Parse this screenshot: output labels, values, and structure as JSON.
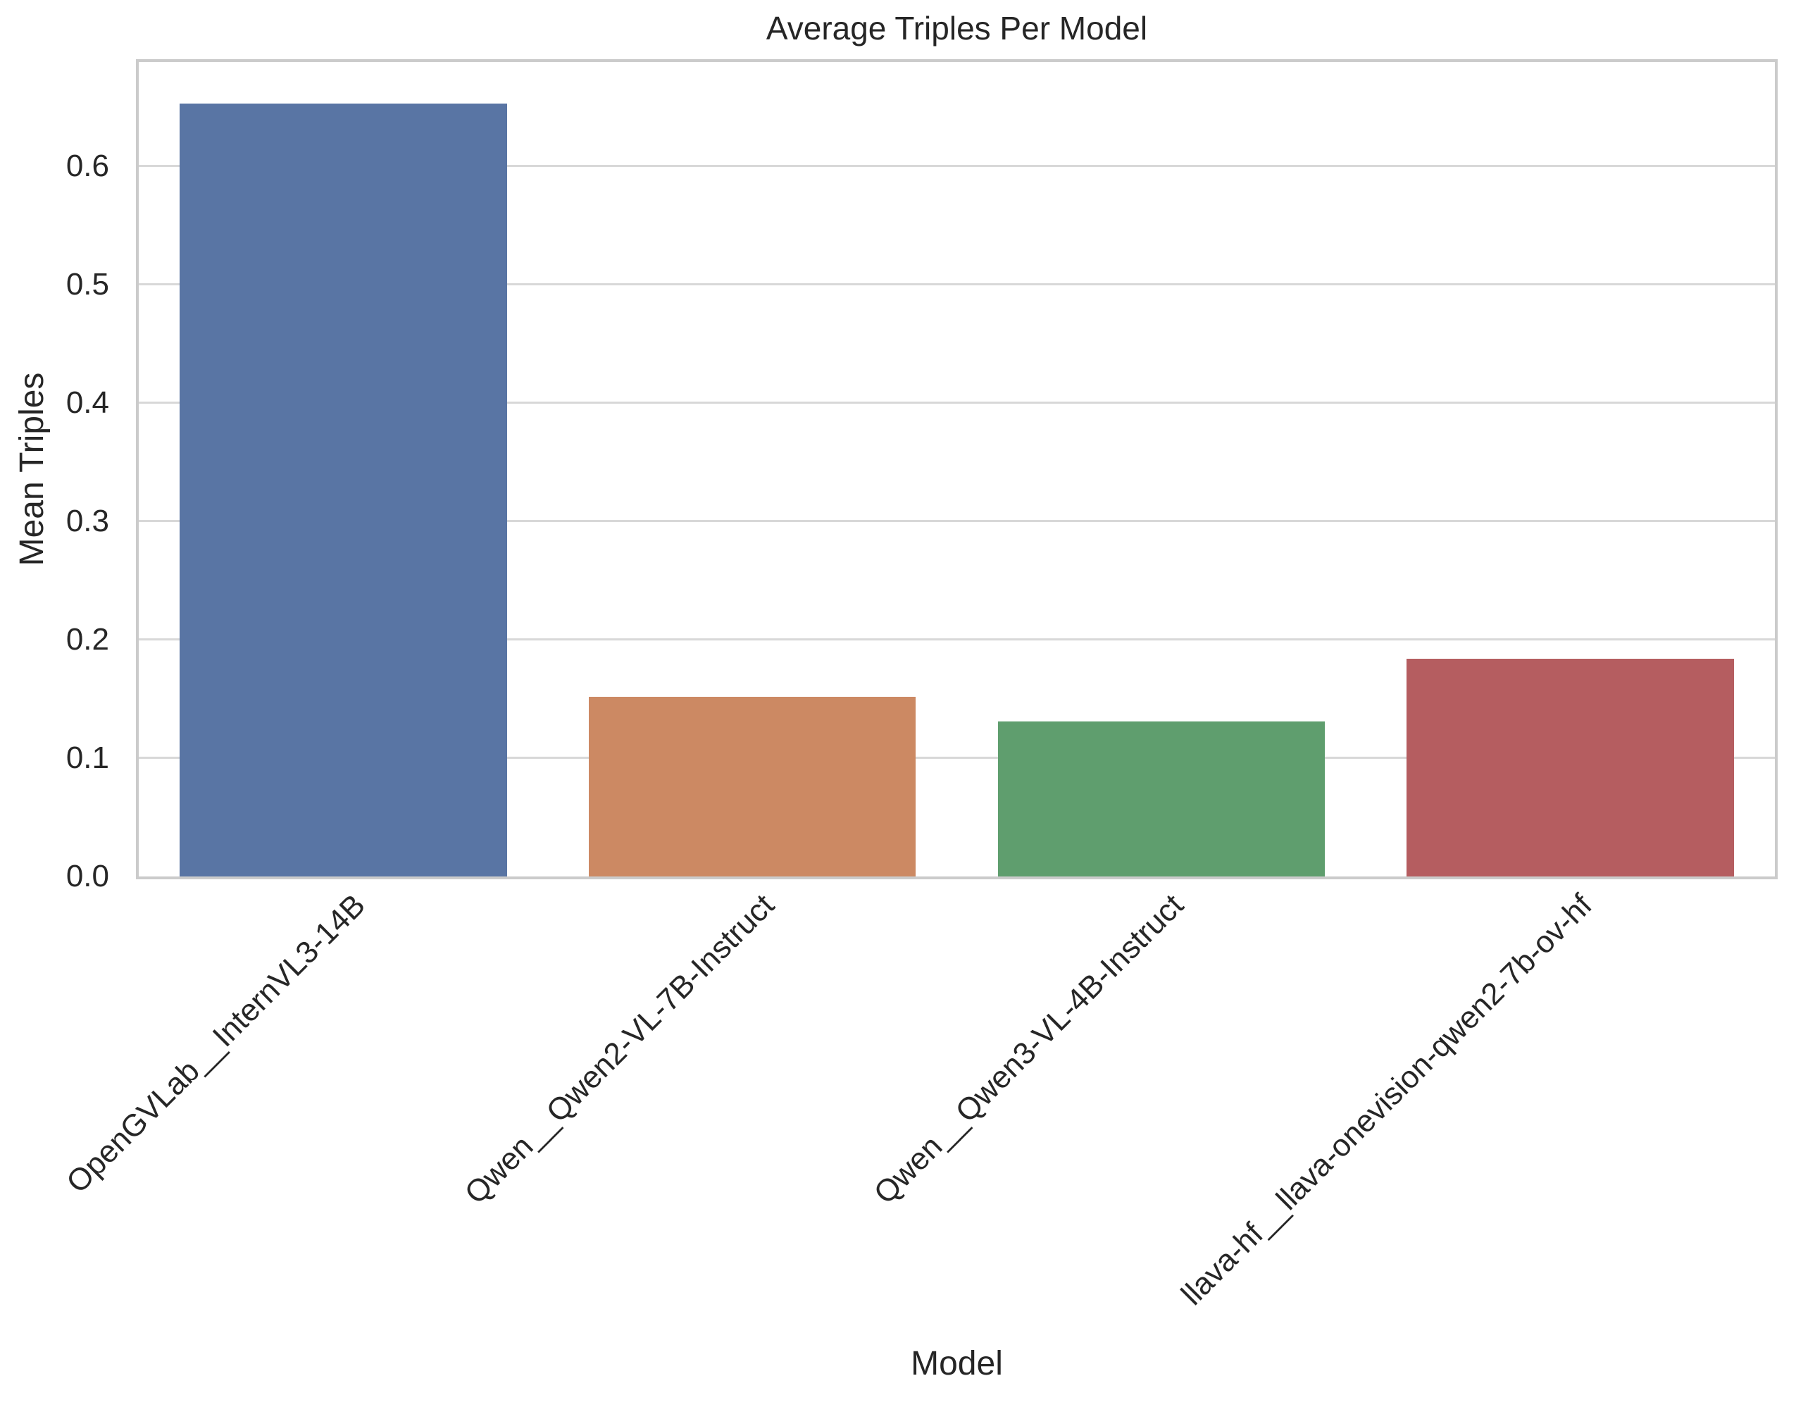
{
  "figure": {
    "background_color": "#FFFFFF",
    "text_color": "#262626",
    "grid_color": "#D8D8D8",
    "spine_color": "#CBCBCB"
  },
  "chart_data": {
    "type": "bar",
    "title": "Average Triples Per Model",
    "xlabel": "Model",
    "ylabel": "Mean Triples",
    "categories": [
      "OpenGVLab__InternVL3-14B",
      "Qwen__Qwen2-VL-7B-Instruct",
      "Qwen__Qwen3-VL-4B-Instruct",
      "llava-hf__llava-onevision-qwen2-7b-ov-hf"
    ],
    "values": [
      0.653,
      0.152,
      0.131,
      0.184
    ],
    "bar_colors": [
      "#5975A4",
      "#CC8963",
      "#5F9E6E",
      "#B55D60"
    ],
    "ylim": [
      0,
      0.688
    ],
    "yticks": [
      0.0,
      0.1,
      0.2,
      0.3,
      0.4,
      0.5,
      0.6
    ],
    "ytick_labels": [
      "0.0",
      "0.1",
      "0.2",
      "0.3",
      "0.4",
      "0.5",
      "0.6"
    ],
    "grid": "horizontal",
    "legend": "none",
    "bar_width_fraction": 0.8,
    "xtick_rotation_deg": 45
  }
}
